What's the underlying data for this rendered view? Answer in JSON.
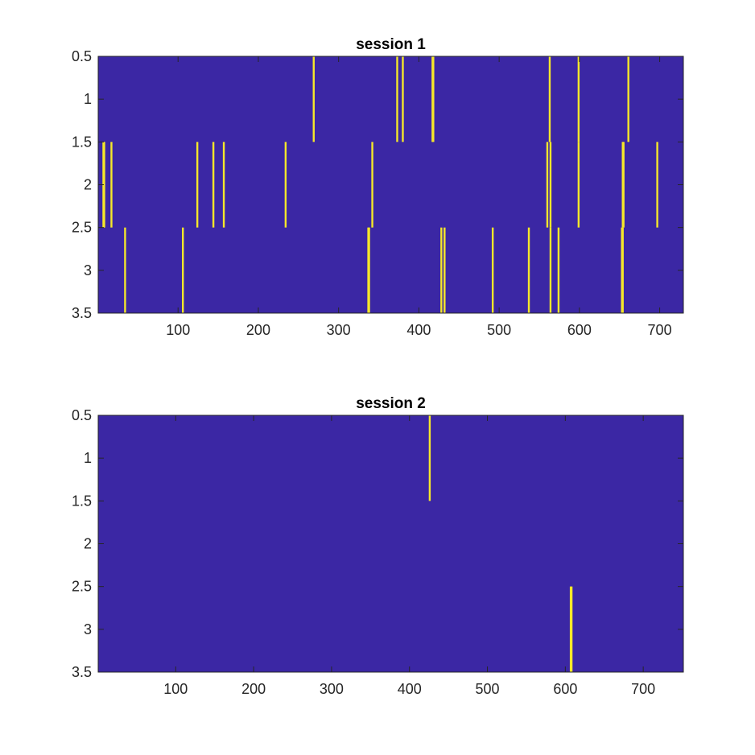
{
  "chart_data": [
    {
      "type": "heatmap",
      "title": "session 1",
      "xlabel": "",
      "ylabel": "",
      "xlim": [
        0.5,
        729.5
      ],
      "ylim": [
        0.5,
        3.5
      ],
      "y_reversed": true,
      "xticks": [
        100,
        200,
        300,
        400,
        500,
        600,
        700
      ],
      "yticks": [
        0.5,
        1,
        1.5,
        2,
        2.5,
        3,
        3.5
      ],
      "colors": {
        "background": "#3b27a4",
        "event": "#f5e72a"
      },
      "rows": [
        {
          "row": 1,
          "events": [
            269,
            373,
            380,
            417,
            418,
            563,
            599,
            661
          ]
        },
        {
          "row": 2,
          "events": [
            7,
            8,
            17,
            124,
            144,
            157,
            234,
            342,
            560,
            564,
            599,
            654,
            655,
            697
          ]
        },
        {
          "row": 3,
          "events": [
            34,
            106,
            337,
            338,
            428,
            432,
            492,
            537,
            564,
            574,
            653,
            654
          ]
        }
      ],
      "grid": false
    },
    {
      "type": "heatmap",
      "title": "session 2",
      "xlabel": "",
      "ylabel": "",
      "xlim": [
        0.5,
        751.5
      ],
      "ylim": [
        0.5,
        3.5
      ],
      "y_reversed": true,
      "xticks": [
        100,
        200,
        300,
        400,
        500,
        600,
        700
      ],
      "yticks": [
        0.5,
        1,
        1.5,
        2,
        2.5,
        3,
        3.5
      ],
      "colors": {
        "background": "#3b27a4",
        "event": "#f5e72a"
      },
      "rows": [
        {
          "row": 1,
          "events": [
            426
          ]
        },
        {
          "row": 2,
          "events": []
        },
        {
          "row": 3,
          "events": [
            607,
            608
          ]
        }
      ],
      "grid": false
    }
  ]
}
